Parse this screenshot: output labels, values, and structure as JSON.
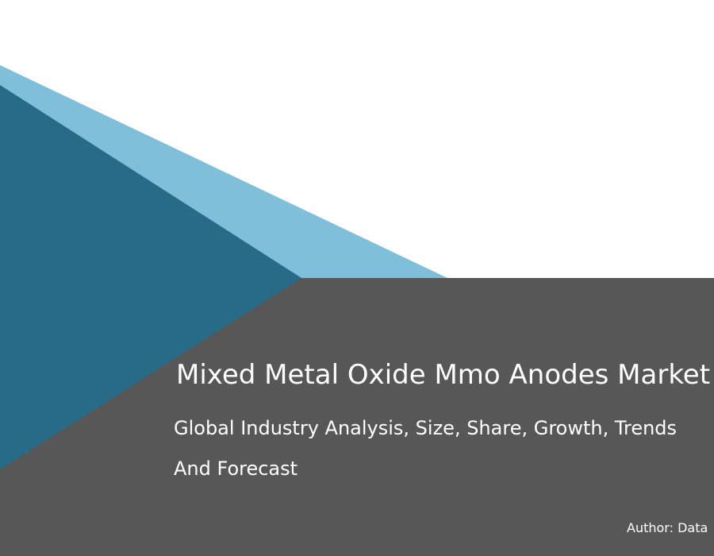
{
  "cover": {
    "title": "Mixed Metal Oxide Mmo Anodes Market",
    "subtitle_line1": "Global  Industry Analysis, Size, Share, Growth, Trends",
    "subtitle_line2": "And  Forecast",
    "author": "Author: Data"
  },
  "colors": {
    "panel_gray": "#575757",
    "dark_blue": "#276b87",
    "light_blue": "#7fbfd9",
    "background": "#ffffff"
  }
}
